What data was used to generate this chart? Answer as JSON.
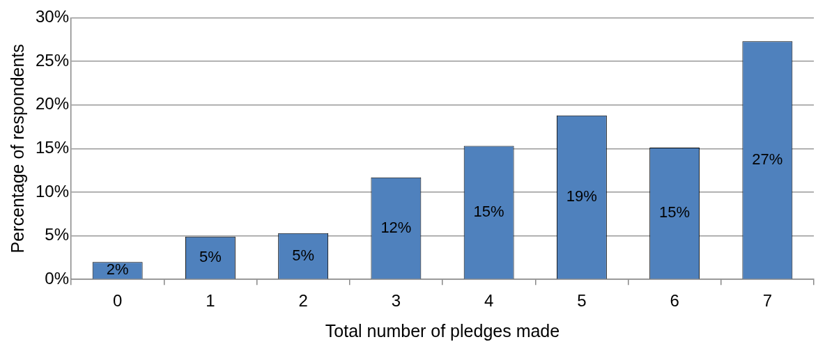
{
  "chart_data": {
    "type": "bar",
    "xlabel": "Total number of pledges made",
    "ylabel": "Percentage of respondents",
    "categories": [
      "0",
      "1",
      "2",
      "3",
      "4",
      "5",
      "6",
      "7"
    ],
    "values": [
      2.0,
      4.9,
      5.3,
      11.7,
      15.3,
      18.8,
      15.1,
      27.3
    ],
    "value_labels": [
      "2%",
      "5%",
      "5%",
      "12%",
      "15%",
      "19%",
      "15%",
      "27%"
    ],
    "color": "#4f81bd",
    "ylim": [
      0,
      30
    ],
    "yticks": [
      {
        "value": 0,
        "label": "0%"
      },
      {
        "value": 5,
        "label": "5%"
      },
      {
        "value": 10,
        "label": "10%"
      },
      {
        "value": 15,
        "label": "15%"
      },
      {
        "value": 20,
        "label": "20%"
      },
      {
        "value": 25,
        "label": "25%"
      },
      {
        "value": 30,
        "label": "30%"
      }
    ],
    "grid": "y",
    "legend": false
  }
}
